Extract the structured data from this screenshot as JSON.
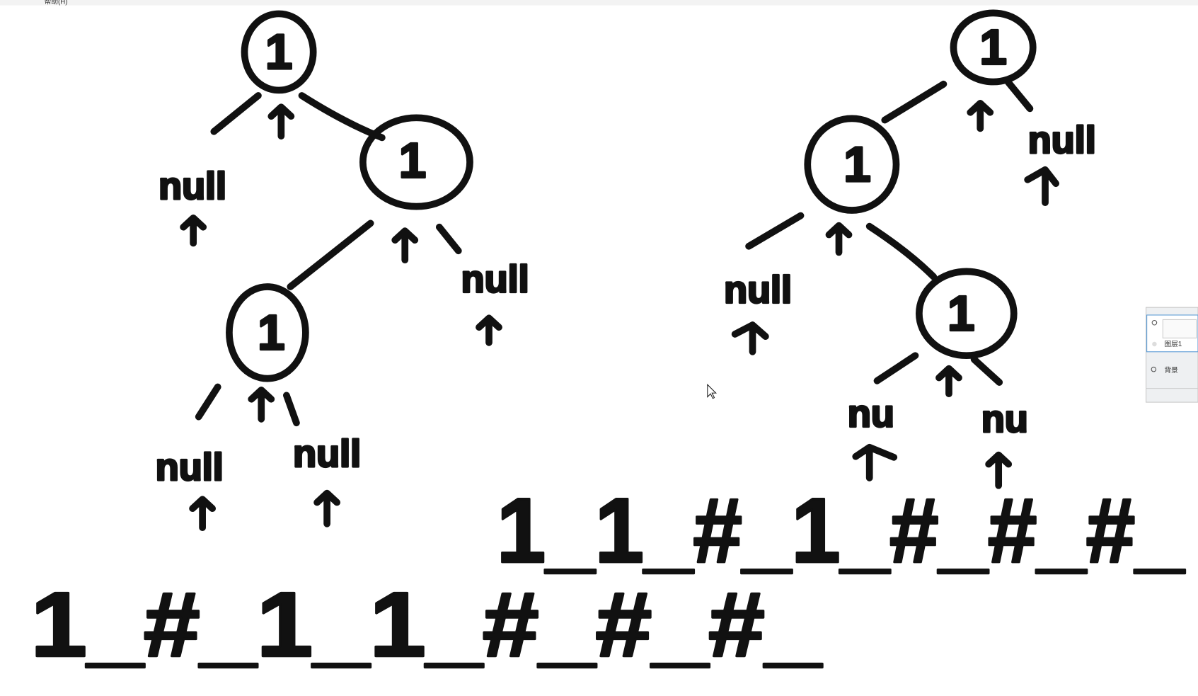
{
  "menu": {
    "help": "帮助(H)"
  },
  "left_tree": {
    "nodes": [
      "1",
      "1",
      "1"
    ],
    "nulls": [
      "null",
      "null",
      "null",
      "null"
    ],
    "serialization": "1_#_1_1_#_#_#_"
  },
  "right_tree": {
    "nodes": [
      "1",
      "1",
      "1"
    ],
    "nulls": [
      "null",
      "null",
      "nu",
      "nu"
    ],
    "serialization": "1_1_#_1_#_#_#_"
  },
  "layers": [
    "图层1",
    "背景"
  ]
}
